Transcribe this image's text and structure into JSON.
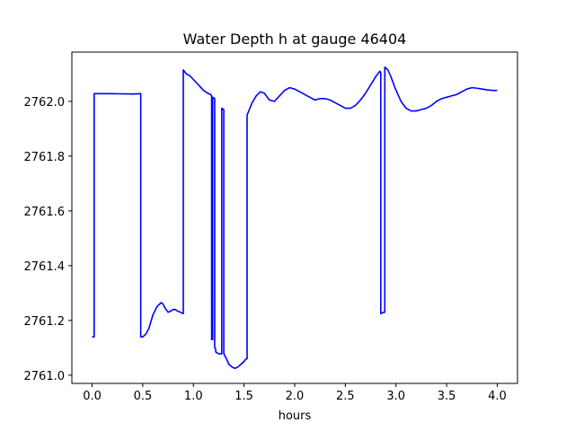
{
  "chart_data": {
    "type": "line",
    "title": "Water Depth h at gauge 46404",
    "xlabel": "hours",
    "ylabel": "",
    "xlim": [
      -0.2,
      4.2
    ],
    "ylim": [
      2760.97,
      2762.18
    ],
    "xticks": [
      0.0,
      0.5,
      1.0,
      1.5,
      2.0,
      2.5,
      3.0,
      3.5,
      4.0
    ],
    "xtick_labels": [
      "0.0",
      "0.5",
      "1.0",
      "1.5",
      "2.0",
      "2.5",
      "3.0",
      "3.5",
      "4.0"
    ],
    "yticks": [
      2761.0,
      2761.2,
      2761.4,
      2761.6,
      2761.8,
      2762.0
    ],
    "ytick_labels": [
      "2761.0",
      "2761.2",
      "2761.4",
      "2761.6",
      "2761.8",
      "2762.0"
    ],
    "grid": false,
    "series": [
      {
        "color": "#0000ff",
        "x": [
          0.0,
          0.02,
          0.02,
          0.05,
          0.2,
          0.4,
          0.48,
          0.48,
          0.5,
          0.53,
          0.56,
          0.6,
          0.64,
          0.68,
          0.7,
          0.72,
          0.75,
          0.78,
          0.8,
          0.82,
          0.84,
          0.86,
          0.88,
          0.9,
          0.9,
          0.93,
          0.96,
          1.0,
          1.05,
          1.1,
          1.14,
          1.17,
          1.18,
          1.18,
          1.19,
          1.19,
          1.21,
          1.21,
          1.22,
          1.22,
          1.24,
          1.26,
          1.28,
          1.28,
          1.3,
          1.3,
          1.31,
          1.32,
          1.35,
          1.38,
          1.41,
          1.44,
          1.47,
          1.5,
          1.52,
          1.53,
          1.53,
          1.58,
          1.62,
          1.66,
          1.7,
          1.75,
          1.8,
          1.85,
          1.9,
          1.95,
          2.0,
          2.05,
          2.1,
          2.15,
          2.2,
          2.25,
          2.3,
          2.35,
          2.4,
          2.45,
          2.5,
          2.55,
          2.6,
          2.65,
          2.7,
          2.75,
          2.8,
          2.84,
          2.85,
          2.85,
          2.88,
          2.89,
          2.89,
          2.92,
          2.95,
          2.99,
          3.05,
          3.1,
          3.15,
          3.2,
          3.25,
          3.3,
          3.35,
          3.4,
          3.45,
          3.5,
          3.55,
          3.6,
          3.65,
          3.7,
          3.75,
          3.8,
          3.85,
          3.9,
          3.95,
          4.0
        ],
        "y": [
          2761.14,
          2761.14,
          2762.028,
          2762.028,
          2762.028,
          2762.027,
          2762.028,
          2761.14,
          2761.14,
          2761.15,
          2761.17,
          2761.22,
          2761.25,
          2761.265,
          2761.26,
          2761.245,
          2761.23,
          2761.235,
          2761.24,
          2761.24,
          2761.235,
          2761.232,
          2761.228,
          2761.225,
          2762.115,
          2762.1,
          2762.095,
          2762.08,
          2762.06,
          2762.04,
          2762.03,
          2762.025,
          2762.02,
          2761.13,
          2761.13,
          2762.015,
          2762.01,
          2761.1,
          2761.095,
          2761.085,
          2761.08,
          2761.078,
          2761.078,
          2761.975,
          2761.97,
          2761.08,
          2761.07,
          2761.065,
          2761.04,
          2761.03,
          2761.025,
          2761.03,
          2761.04,
          2761.05,
          2761.06,
          2761.06,
          2761.95,
          2761.995,
          2762.02,
          2762.035,
          2762.03,
          2762.005,
          2762.0,
          2762.02,
          2762.04,
          2762.05,
          2762.045,
          2762.035,
          2762.025,
          2762.015,
          2762.005,
          2762.01,
          2762.01,
          2762.005,
          2761.995,
          2761.985,
          2761.975,
          2761.975,
          2761.985,
          2762.005,
          2762.03,
          2762.06,
          2762.09,
          2762.11,
          2762.105,
          2761.225,
          2761.23,
          2761.23,
          2762.125,
          2762.115,
          2762.09,
          2762.05,
          2762.0,
          2761.975,
          2761.965,
          2761.965,
          2761.97,
          2761.975,
          2761.985,
          2762.0,
          2762.01,
          2762.015,
          2762.02,
          2762.025,
          2762.035,
          2762.045,
          2762.05,
          2762.048,
          2762.045,
          2762.042,
          2762.04,
          2762.04
        ]
      }
    ]
  }
}
